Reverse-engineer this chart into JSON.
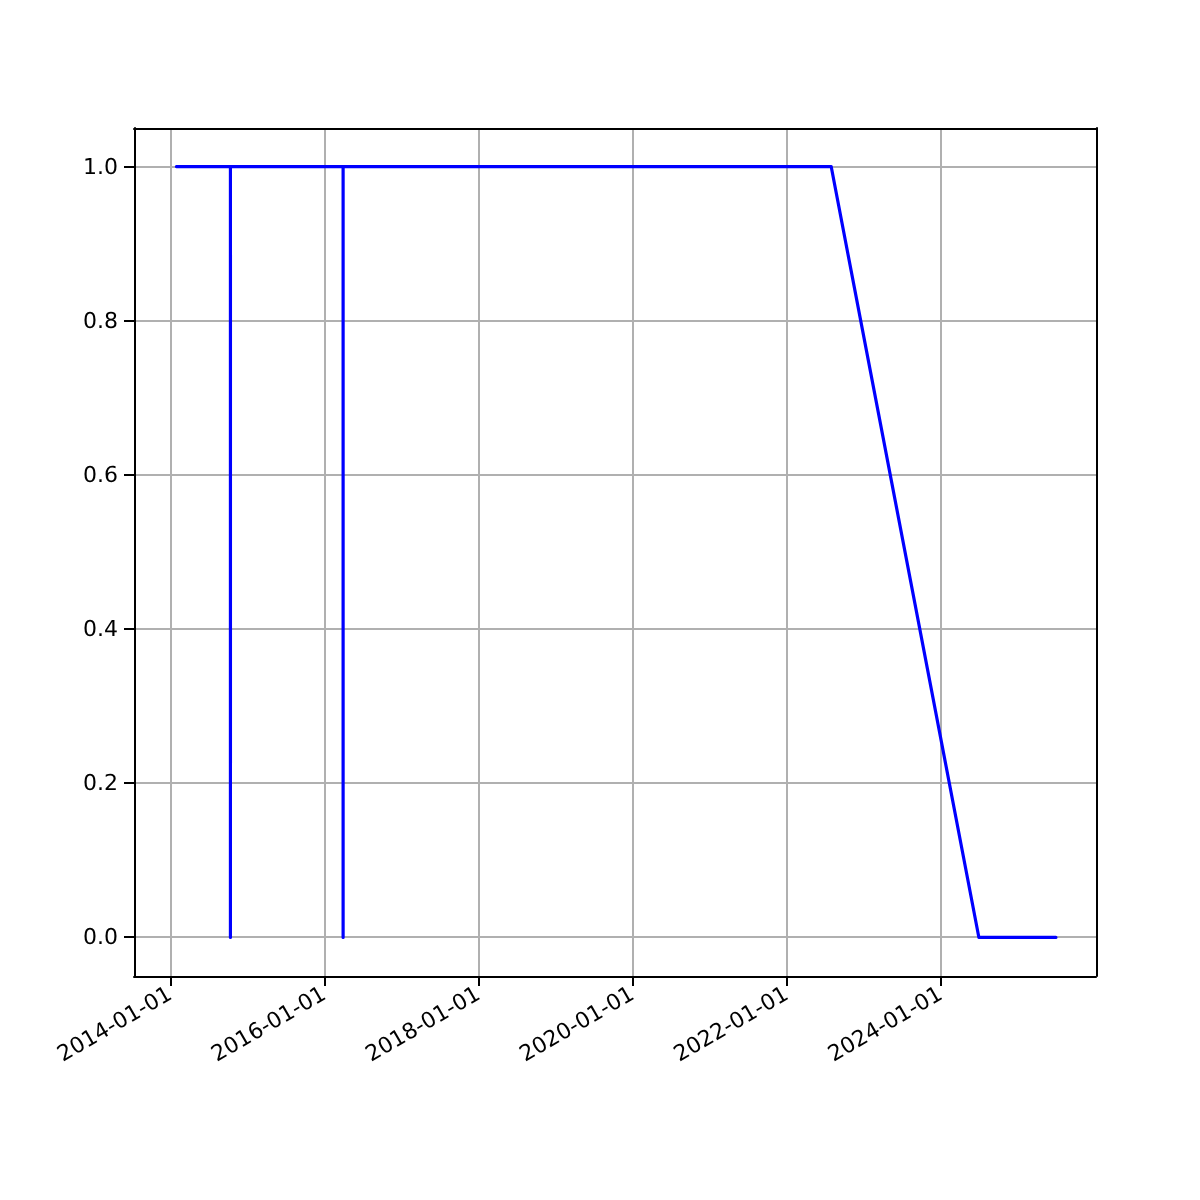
{
  "chart_data": {
    "type": "line",
    "x": [
      "2014-02-01",
      "2014-10-15",
      "2014-10-15",
      "2014-10-15",
      "2016-04-01",
      "2016-04-01",
      "2016-04-01",
      "2022-08-01",
      "2024-07-01",
      "2025-07-01"
    ],
    "series": [
      {
        "color": "#0000ff",
        "values": [
          1,
          1,
          0,
          1,
          1,
          0,
          1,
          1,
          0,
          0
        ]
      }
    ],
    "xlim": [
      "2013-07-15",
      "2026-01-07"
    ],
    "xticks": [
      "2014-01-01",
      "2016-01-01",
      "2018-01-01",
      "2020-01-01",
      "2022-01-01",
      "2024-01-01"
    ],
    "ylim": [
      -0.05,
      1.05
    ],
    "yticks": [
      {
        "value": 0,
        "label": "0.0"
      },
      {
        "value": 0.2,
        "label": "0.2"
      },
      {
        "value": 0.4,
        "label": "0.4"
      },
      {
        "value": 0.6,
        "label": "0.6"
      },
      {
        "value": 0.8,
        "label": "0.8"
      },
      {
        "value": 1,
        "label": "1.0"
      }
    ],
    "grid": true,
    "marker": "none",
    "line_style": "solid"
  }
}
